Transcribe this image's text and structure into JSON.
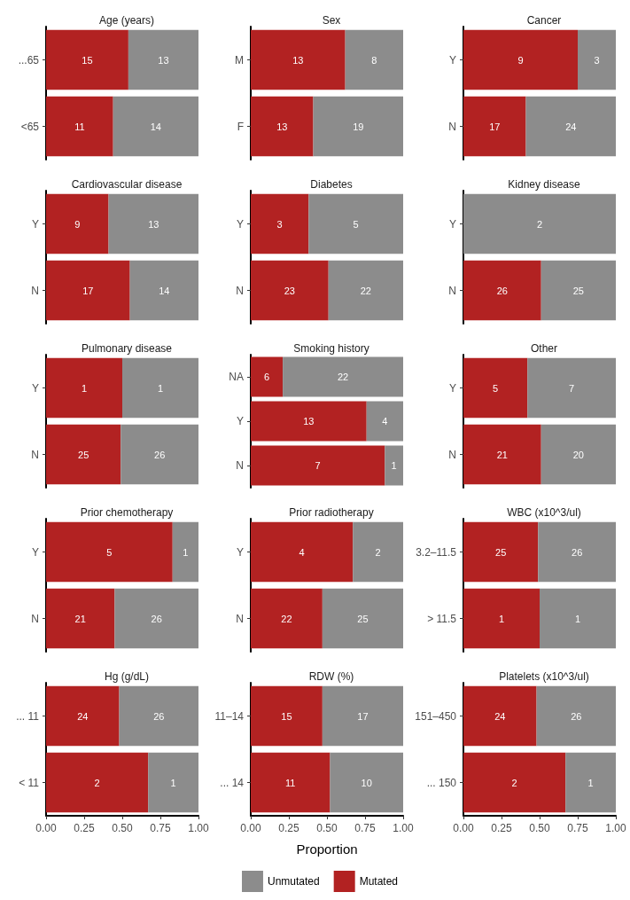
{
  "chart_data": [
    {
      "type": "bar",
      "orientation": "horizontal",
      "stacked": true,
      "title": "Age (years)",
      "categories": [
        "...65",
        "<65"
      ],
      "series": [
        {
          "color": "#b22222",
          "values": [
            0.54,
            0.44
          ]
        },
        {
          "color": "#8c8c8c",
          "values": [
            0.46,
            0.56
          ]
        }
      ],
      "annotations": [
        {
          "text": "15",
          "x": 0.27,
          "y": "...65"
        },
        {
          "text": "13",
          "x": 0.77,
          "y": "...65"
        },
        {
          "text": "11",
          "x": 0.22,
          "y": "<65"
        },
        {
          "text": "14",
          "x": 0.72,
          "y": "<65"
        }
      ],
      "xlim": [
        0,
        1
      ],
      "tick_labels": "y",
      "grid": false
    },
    {
      "type": "bar",
      "orientation": "horizontal",
      "stacked": true,
      "title": "Sex",
      "categories": [
        "M",
        "F"
      ],
      "series": [
        {
          "color": "#b22222",
          "values": [
            0.62,
            0.41
          ]
        },
        {
          "color": "#8c8c8c",
          "values": [
            0.38,
            0.59
          ]
        }
      ],
      "annotations": [
        {
          "text": "13",
          "x": 0.31,
          "y": "M"
        },
        {
          "text": "8",
          "x": 0.81,
          "y": "M"
        },
        {
          "text": "13",
          "x": 0.205,
          "y": "F"
        },
        {
          "text": "19",
          "x": 0.705,
          "y": "F"
        }
      ],
      "xlim": [
        0,
        1
      ],
      "tick_labels": "y",
      "grid": false
    },
    {
      "type": "bar",
      "orientation": "horizontal",
      "stacked": true,
      "title": "Cancer",
      "categories": [
        "Y",
        "N"
      ],
      "series": [
        {
          "color": "#b22222",
          "values": [
            0.75,
            0.41
          ]
        },
        {
          "color": "#8c8c8c",
          "values": [
            0.25,
            0.59
          ]
        }
      ],
      "annotations": [
        {
          "text": "9",
          "x": 0.375,
          "y": "Y"
        },
        {
          "text": "3",
          "x": 0.875,
          "y": "Y"
        },
        {
          "text": "17",
          "x": 0.205,
          "y": "N"
        },
        {
          "text": "24",
          "x": 0.705,
          "y": "N"
        }
      ],
      "xlim": [
        0,
        1
      ],
      "tick_labels": "y",
      "grid": false
    },
    {
      "type": "bar",
      "orientation": "horizontal",
      "stacked": true,
      "title": "Cardiovascular disease",
      "categories": [
        "Y",
        "N"
      ],
      "series": [
        {
          "color": "#b22222",
          "values": [
            0.41,
            0.55
          ]
        },
        {
          "color": "#8c8c8c",
          "values": [
            0.59,
            0.45
          ]
        }
      ],
      "annotations": [
        {
          "text": "9",
          "x": 0.205,
          "y": "Y"
        },
        {
          "text": "13",
          "x": 0.705,
          "y": "Y"
        },
        {
          "text": "17",
          "x": 0.275,
          "y": "N"
        },
        {
          "text": "14",
          "x": 0.775,
          "y": "N"
        }
      ],
      "xlim": [
        0,
        1
      ],
      "tick_labels": "y",
      "grid": false
    },
    {
      "type": "bar",
      "orientation": "horizontal",
      "stacked": true,
      "title": "Diabetes",
      "categories": [
        "Y",
        "N"
      ],
      "series": [
        {
          "color": "#b22222",
          "values": [
            0.38,
            0.51
          ]
        },
        {
          "color": "#8c8c8c",
          "values": [
            0.62,
            0.49
          ]
        }
      ],
      "annotations": [
        {
          "text": "3",
          "x": 0.19,
          "y": "Y"
        },
        {
          "text": "5",
          "x": 0.69,
          "y": "Y"
        },
        {
          "text": "23",
          "x": 0.255,
          "y": "N"
        },
        {
          "text": "22",
          "x": 0.755,
          "y": "N"
        }
      ],
      "xlim": [
        0,
        1
      ],
      "tick_labels": "y",
      "grid": false
    },
    {
      "type": "bar",
      "orientation": "horizontal",
      "stacked": true,
      "title": "Kidney disease",
      "categories": [
        "Y",
        "N"
      ],
      "series": [
        {
          "color": "#b22222",
          "values": [
            0,
            0.51
          ]
        },
        {
          "color": "#8c8c8c",
          "values": [
            1,
            0.49
          ]
        }
      ],
      "annotations": [
        {
          "text": "2",
          "x": 0.5,
          "y": "Y"
        },
        {
          "text": "26",
          "x": 0.255,
          "y": "N"
        },
        {
          "text": "25",
          "x": 0.755,
          "y": "N"
        }
      ],
      "xlim": [
        0,
        1
      ],
      "tick_labels": "y",
      "grid": false
    },
    {
      "type": "bar",
      "orientation": "horizontal",
      "stacked": true,
      "title": "Pulmonary disease",
      "categories": [
        "Y",
        "N"
      ],
      "series": [
        {
          "color": "#b22222",
          "values": [
            0.5,
            0.49
          ]
        },
        {
          "color": "#8c8c8c",
          "values": [
            0.5,
            0.51
          ]
        }
      ],
      "annotations": [
        {
          "text": "1",
          "x": 0.25,
          "y": "Y"
        },
        {
          "text": "1",
          "x": 0.75,
          "y": "Y"
        },
        {
          "text": "25",
          "x": 0.245,
          "y": "N"
        },
        {
          "text": "26",
          "x": 0.745,
          "y": "N"
        }
      ],
      "xlim": [
        0,
        1
      ],
      "tick_labels": "y",
      "grid": false
    },
    {
      "type": "bar",
      "orientation": "horizontal",
      "stacked": true,
      "title": "Smoking history",
      "categories": [
        "NA",
        "Y",
        "N"
      ],
      "series": [
        {
          "color": "#b22222",
          "values": [
            0.21,
            0.76,
            0.88
          ]
        },
        {
          "color": "#8c8c8c",
          "values": [
            0.79,
            0.24,
            0.12
          ]
        }
      ],
      "annotations": [
        {
          "text": "6",
          "x": 0.105,
          "y": "NA"
        },
        {
          "text": "22",
          "x": 0.605,
          "y": "NA"
        },
        {
          "text": "13",
          "x": 0.38,
          "y": "Y"
        },
        {
          "text": "4",
          "x": 0.88,
          "y": "Y"
        },
        {
          "text": "7",
          "x": 0.44,
          "y": "N"
        },
        {
          "text": "1",
          "x": 0.94,
          "y": "N"
        }
      ],
      "xlim": [
        0,
        1
      ],
      "tick_labels": "y",
      "grid": false
    },
    {
      "type": "bar",
      "orientation": "horizontal",
      "stacked": true,
      "title": "Other",
      "categories": [
        "Y",
        "N"
      ],
      "series": [
        {
          "color": "#b22222",
          "values": [
            0.42,
            0.51
          ]
        },
        {
          "color": "#8c8c8c",
          "values": [
            0.58,
            0.49
          ]
        }
      ],
      "annotations": [
        {
          "text": "5",
          "x": 0.21,
          "y": "Y"
        },
        {
          "text": "7",
          "x": 0.71,
          "y": "Y"
        },
        {
          "text": "21",
          "x": 0.255,
          "y": "N"
        },
        {
          "text": "20",
          "x": 0.755,
          "y": "N"
        }
      ],
      "xlim": [
        0,
        1
      ],
      "tick_labels": "y",
      "grid": false
    },
    {
      "type": "bar",
      "orientation": "horizontal",
      "stacked": true,
      "title": "Prior chemotherapy",
      "categories": [
        "Y",
        "N"
      ],
      "series": [
        {
          "color": "#b22222",
          "values": [
            0.83,
            0.45
          ]
        },
        {
          "color": "#8c8c8c",
          "values": [
            0.17,
            0.55
          ]
        }
      ],
      "annotations": [
        {
          "text": "5",
          "x": 0.415,
          "y": "Y"
        },
        {
          "text": "1",
          "x": 0.915,
          "y": "Y"
        },
        {
          "text": "21",
          "x": 0.225,
          "y": "N"
        },
        {
          "text": "26",
          "x": 0.725,
          "y": "N"
        }
      ],
      "xlim": [
        0,
        1
      ],
      "tick_labels": "y",
      "grid": false
    },
    {
      "type": "bar",
      "orientation": "horizontal",
      "stacked": true,
      "title": "Prior radiotherapy",
      "categories": [
        "Y",
        "N"
      ],
      "series": [
        {
          "color": "#b22222",
          "values": [
            0.67,
            0.47
          ]
        },
        {
          "color": "#8c8c8c",
          "values": [
            0.33,
            0.53
          ]
        }
      ],
      "annotations": [
        {
          "text": "4",
          "x": 0.335,
          "y": "Y"
        },
        {
          "text": "2",
          "x": 0.835,
          "y": "Y"
        },
        {
          "text": "22",
          "x": 0.235,
          "y": "N"
        },
        {
          "text": "25",
          "x": 0.735,
          "y": "N"
        }
      ],
      "xlim": [
        0,
        1
      ],
      "tick_labels": "y",
      "grid": false
    },
    {
      "type": "bar",
      "orientation": "horizontal",
      "stacked": true,
      "title": "WBC (x10^3/ul)",
      "categories": [
        "3.2–11.5",
        "> 11.5"
      ],
      "series": [
        {
          "color": "#b22222",
          "values": [
            0.49,
            0.5
          ]
        },
        {
          "color": "#8c8c8c",
          "values": [
            0.51,
            0.5
          ]
        }
      ],
      "annotations": [
        {
          "text": "25",
          "x": 0.245,
          "y": "3.2–11.5"
        },
        {
          "text": "26",
          "x": 0.745,
          "y": "3.2–11.5"
        },
        {
          "text": "1",
          "x": 0.25,
          "y": "> 11.5"
        },
        {
          "text": "1",
          "x": 0.75,
          "y": "> 11.5"
        }
      ],
      "xlim": [
        0,
        1
      ],
      "tick_labels": "y",
      "grid": false
    },
    {
      "type": "bar",
      "orientation": "horizontal",
      "stacked": true,
      "title": "Hg (g/dL)",
      "categories": [
        "... 11",
        "< 11"
      ],
      "series": [
        {
          "color": "#b22222",
          "values": [
            0.48,
            0.67
          ]
        },
        {
          "color": "#8c8c8c",
          "values": [
            0.52,
            0.33
          ]
        }
      ],
      "annotations": [
        {
          "text": "24",
          "x": 0.24,
          "y": "... 11"
        },
        {
          "text": "26",
          "x": 0.74,
          "y": "... 11"
        },
        {
          "text": "2",
          "x": 0.335,
          "y": "< 11"
        },
        {
          "text": "1",
          "x": 0.835,
          "y": "< 11"
        }
      ],
      "xlim": [
        0,
        1
      ],
      "xticks": [
        {
          "value": 0,
          "label": "0.00"
        },
        {
          "value": 0.25,
          "label": "0.25"
        },
        {
          "value": 0.5,
          "label": "0.50"
        },
        {
          "value": 0.75,
          "label": "0.75"
        },
        {
          "value": 1,
          "label": "1.00"
        }
      ],
      "grid": false
    },
    {
      "type": "bar",
      "orientation": "horizontal",
      "stacked": true,
      "title": "RDW (%)",
      "xlabel": "Proportion",
      "legend": "bottom",
      "categories": [
        "11–14",
        "... 14"
      ],
      "series": [
        {
          "name": "Mutated",
          "color": "#b22222",
          "values": [
            0.47,
            0.52
          ]
        },
        {
          "name": "Unmutated",
          "color": "#8c8c8c",
          "values": [
            0.53,
            0.48
          ]
        }
      ],
      "annotations": [
        {
          "text": "15",
          "x": 0.235,
          "y": "11–14"
        },
        {
          "text": "17",
          "x": 0.735,
          "y": "11–14"
        },
        {
          "text": "11",
          "x": 0.26,
          "y": "... 14"
        },
        {
          "text": "10",
          "x": 0.76,
          "y": "... 14"
        }
      ],
      "xlim": [
        0,
        1
      ],
      "xticks": [
        {
          "value": 0,
          "label": "0.00"
        },
        {
          "value": 0.25,
          "label": "0.25"
        },
        {
          "value": 0.5,
          "label": "0.50"
        },
        {
          "value": 0.75,
          "label": "0.75"
        },
        {
          "value": 1,
          "label": "1.00"
        }
      ],
      "grid": false
    },
    {
      "type": "bar",
      "orientation": "horizontal",
      "stacked": true,
      "title": "Platelets (x10^3/ul)",
      "categories": [
        "151–450",
        "... 150"
      ],
      "series": [
        {
          "color": "#b22222",
          "values": [
            0.48,
            0.67
          ]
        },
        {
          "color": "#8c8c8c",
          "values": [
            0.52,
            0.33
          ]
        }
      ],
      "annotations": [
        {
          "text": "24",
          "x": 0.24,
          "y": "151–450"
        },
        {
          "text": "26",
          "x": 0.74,
          "y": "151–450"
        },
        {
          "text": "2",
          "x": 0.335,
          "y": "... 150"
        },
        {
          "text": "1",
          "x": 0.835,
          "y": "... 150"
        }
      ],
      "xlim": [
        0,
        1
      ],
      "xticks": [
        {
          "value": 0,
          "label": "0.00"
        },
        {
          "value": 0.25,
          "label": "0.25"
        },
        {
          "value": 0.5,
          "label": "0.50"
        },
        {
          "value": 0.75,
          "label": "0.75"
        },
        {
          "value": 1,
          "label": "1.00"
        }
      ],
      "grid": false
    }
  ]
}
